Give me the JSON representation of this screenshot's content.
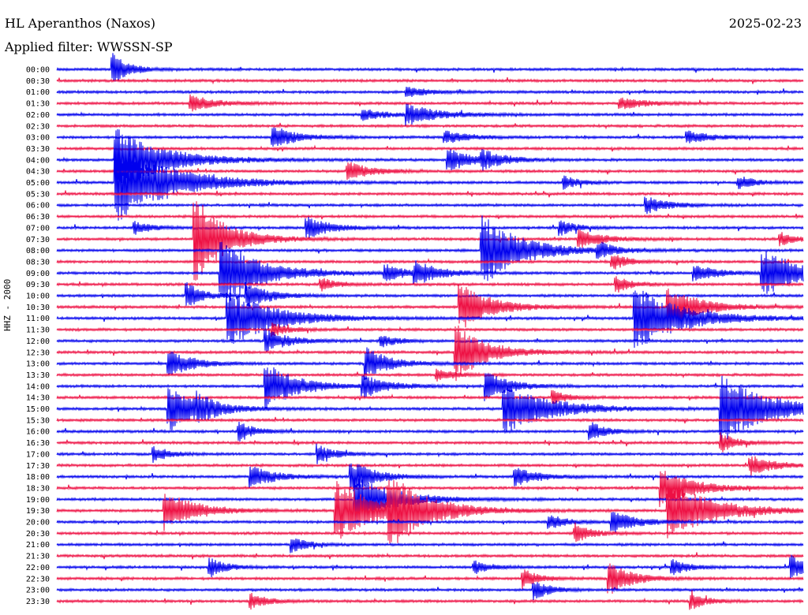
{
  "header": {
    "station": "HL Aperanthos (Naxos)",
    "date": "2025-02-23",
    "filter": "Applied filter: WWSSN-SP",
    "channel": "HHZ - 2000"
  },
  "colors": {
    "line_a": "#0000ee",
    "line_b": "#ee1144",
    "background": "#ffffff"
  },
  "chart_data": {
    "type": "line",
    "title": "HL Aperanthos (Naxos)",
    "ylabel": "HHZ - 2000",
    "row_labels": [
      "00:00",
      "00:30",
      "01:00",
      "01:30",
      "02:00",
      "02:30",
      "03:00",
      "03:30",
      "04:00",
      "04:30",
      "05:00",
      "05:30",
      "06:00",
      "06:30",
      "07:00",
      "07:30",
      "08:00",
      "08:30",
      "09:00",
      "09:30",
      "10:00",
      "10:30",
      "11:00",
      "11:30",
      "12:00",
      "12:30",
      "13:00",
      "13:30",
      "14:00",
      "14:30",
      "15:00",
      "15:30",
      "16:00",
      "16:30",
      "17:00",
      "17:30",
      "18:00",
      "18:30",
      "19:00",
      "19:30",
      "20:00",
      "20:30",
      "21:00",
      "21:30",
      "22:00",
      "22:30",
      "23:00",
      "23:30"
    ],
    "row_colors": [
      "blue",
      "red"
    ],
    "events": [
      {
        "row": 0,
        "x": 0.075,
        "amp": 20,
        "dur": 0.02
      },
      {
        "row": 2,
        "x": 0.47,
        "amp": 6,
        "dur": 0.03
      },
      {
        "row": 3,
        "x": 0.18,
        "amp": 10,
        "dur": 0.03
      },
      {
        "row": 3,
        "x": 0.755,
        "amp": 8,
        "dur": 0.03
      },
      {
        "row": 4,
        "x": 0.41,
        "amp": 7,
        "dur": 0.03
      },
      {
        "row": 4,
        "x": 0.47,
        "amp": 12,
        "dur": 0.04
      },
      {
        "row": 6,
        "x": 0.29,
        "amp": 14,
        "dur": 0.03
      },
      {
        "row": 6,
        "x": 0.52,
        "amp": 8,
        "dur": 0.03
      },
      {
        "row": 6,
        "x": 0.845,
        "amp": 8,
        "dur": 0.03
      },
      {
        "row": 8,
        "x": 0.08,
        "amp": 40,
        "dur": 0.06
      },
      {
        "row": 8,
        "x": 0.525,
        "amp": 14,
        "dur": 0.03
      },
      {
        "row": 8,
        "x": 0.57,
        "amp": 10,
        "dur": 0.03
      },
      {
        "row": 9,
        "x": 0.39,
        "amp": 12,
        "dur": 0.03
      },
      {
        "row": 10,
        "x": 0.08,
        "amp": 50,
        "dur": 0.07
      },
      {
        "row": 10,
        "x": 0.68,
        "amp": 8,
        "dur": 0.02
      },
      {
        "row": 10,
        "x": 0.915,
        "amp": 8,
        "dur": 0.02
      },
      {
        "row": 12,
        "x": 0.79,
        "amp": 10,
        "dur": 0.03
      },
      {
        "row": 14,
        "x": 0.105,
        "amp": 8,
        "dur": 0.02
      },
      {
        "row": 14,
        "x": 0.335,
        "amp": 14,
        "dur": 0.03
      },
      {
        "row": 14,
        "x": 0.675,
        "amp": 9,
        "dur": 0.02
      },
      {
        "row": 15,
        "x": 0.185,
        "amp": 55,
        "dur": 0.04
      },
      {
        "row": 15,
        "x": 0.7,
        "amp": 12,
        "dur": 0.03
      },
      {
        "row": 15,
        "x": 0.97,
        "amp": 8,
        "dur": 0.02
      },
      {
        "row": 16,
        "x": 0.57,
        "amp": 45,
        "dur": 0.05
      },
      {
        "row": 16,
        "x": 0.725,
        "amp": 10,
        "dur": 0.02
      },
      {
        "row": 17,
        "x": 0.745,
        "amp": 10,
        "dur": 0.02
      },
      {
        "row": 18,
        "x": 0.22,
        "amp": 45,
        "dur": 0.05
      },
      {
        "row": 18,
        "x": 0.44,
        "amp": 10,
        "dur": 0.03
      },
      {
        "row": 18,
        "x": 0.48,
        "amp": 14,
        "dur": 0.03
      },
      {
        "row": 18,
        "x": 0.855,
        "amp": 10,
        "dur": 0.03
      },
      {
        "row": 18,
        "x": 0.945,
        "amp": 30,
        "dur": 0.05
      },
      {
        "row": 19,
        "x": 0.355,
        "amp": 8,
        "dur": 0.02
      },
      {
        "row": 19,
        "x": 0.75,
        "amp": 10,
        "dur": 0.02
      },
      {
        "row": 20,
        "x": 0.175,
        "amp": 16,
        "dur": 0.02
      },
      {
        "row": 20,
        "x": 0.255,
        "amp": 16,
        "dur": 0.03
      },
      {
        "row": 21,
        "x": 0.54,
        "amp": 30,
        "dur": 0.04
      },
      {
        "row": 21,
        "x": 0.82,
        "amp": 25,
        "dur": 0.04
      },
      {
        "row": 22,
        "x": 0.23,
        "amp": 35,
        "dur": 0.06
      },
      {
        "row": 22,
        "x": 0.775,
        "amp": 40,
        "dur": 0.06
      },
      {
        "row": 23,
        "x": 0.29,
        "amp": 8,
        "dur": 0.02
      },
      {
        "row": 24,
        "x": 0.28,
        "amp": 14,
        "dur": 0.03
      },
      {
        "row": 24,
        "x": 0.435,
        "amp": 8,
        "dur": 0.02
      },
      {
        "row": 25,
        "x": 0.535,
        "amp": 35,
        "dur": 0.04
      },
      {
        "row": 26,
        "x": 0.15,
        "amp": 18,
        "dur": 0.03
      },
      {
        "row": 26,
        "x": 0.415,
        "amp": 20,
        "dur": 0.03
      },
      {
        "row": 27,
        "x": 0.51,
        "amp": 8,
        "dur": 0.02
      },
      {
        "row": 28,
        "x": 0.28,
        "amp": 30,
        "dur": 0.04
      },
      {
        "row": 28,
        "x": 0.41,
        "amp": 14,
        "dur": 0.03
      },
      {
        "row": 28,
        "x": 0.575,
        "amp": 18,
        "dur": 0.03
      },
      {
        "row": 29,
        "x": 0.665,
        "amp": 8,
        "dur": 0.02
      },
      {
        "row": 30,
        "x": 0.15,
        "amp": 30,
        "dur": 0.04
      },
      {
        "row": 30,
        "x": 0.19,
        "amp": 10,
        "dur": 0.02
      },
      {
        "row": 30,
        "x": 0.6,
        "amp": 30,
        "dur": 0.06
      },
      {
        "row": 30,
        "x": 0.89,
        "amp": 45,
        "dur": 0.06
      },
      {
        "row": 32,
        "x": 0.245,
        "amp": 12,
        "dur": 0.02
      },
      {
        "row": 32,
        "x": 0.715,
        "amp": 12,
        "dur": 0.02
      },
      {
        "row": 33,
        "x": 0.89,
        "amp": 12,
        "dur": 0.02
      },
      {
        "row": 34,
        "x": 0.13,
        "amp": 10,
        "dur": 0.02
      },
      {
        "row": 34,
        "x": 0.35,
        "amp": 12,
        "dur": 0.02
      },
      {
        "row": 35,
        "x": 0.93,
        "amp": 12,
        "dur": 0.03
      },
      {
        "row": 36,
        "x": 0.26,
        "amp": 14,
        "dur": 0.03
      },
      {
        "row": 36,
        "x": 0.395,
        "amp": 20,
        "dur": 0.03
      },
      {
        "row": 36,
        "x": 0.615,
        "amp": 12,
        "dur": 0.03
      },
      {
        "row": 37,
        "x": 0.81,
        "amp": 25,
        "dur": 0.04
      },
      {
        "row": 38,
        "x": 0.4,
        "amp": 30,
        "dur": 0.05
      },
      {
        "row": 39,
        "x": 0.145,
        "amp": 25,
        "dur": 0.04
      },
      {
        "row": 39,
        "x": 0.375,
        "amp": 40,
        "dur": 0.05
      },
      {
        "row": 39,
        "x": 0.445,
        "amp": 40,
        "dur": 0.05
      },
      {
        "row": 39,
        "x": 0.82,
        "amp": 35,
        "dur": 0.06
      },
      {
        "row": 40,
        "x": 0.66,
        "amp": 10,
        "dur": 0.02
      },
      {
        "row": 40,
        "x": 0.745,
        "amp": 14,
        "dur": 0.03
      },
      {
        "row": 41,
        "x": 0.695,
        "amp": 12,
        "dur": 0.02
      },
      {
        "row": 42,
        "x": 0.315,
        "amp": 10,
        "dur": 0.02
      },
      {
        "row": 44,
        "x": 0.205,
        "amp": 12,
        "dur": 0.02
      },
      {
        "row": 44,
        "x": 0.56,
        "amp": 8,
        "dur": 0.02
      },
      {
        "row": 44,
        "x": 0.825,
        "amp": 10,
        "dur": 0.02
      },
      {
        "row": 44,
        "x": 0.985,
        "amp": 16,
        "dur": 0.02
      },
      {
        "row": 45,
        "x": 0.625,
        "amp": 12,
        "dur": 0.02
      },
      {
        "row": 45,
        "x": 0.74,
        "amp": 20,
        "dur": 0.03
      },
      {
        "row": 46,
        "x": 0.64,
        "amp": 12,
        "dur": 0.02
      },
      {
        "row": 47,
        "x": 0.26,
        "amp": 10,
        "dur": 0.02
      },
      {
        "row": 47,
        "x": 0.85,
        "amp": 10,
        "dur": 0.02
      }
    ]
  }
}
